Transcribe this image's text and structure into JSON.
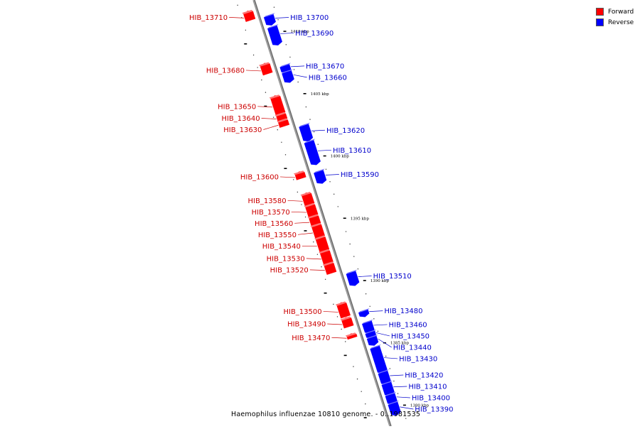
{
  "caption": "Haemophilus influenzae 10810 genome. - 0..1981535",
  "legend": [
    {
      "label": "Forward",
      "color": "#ff0000"
    },
    {
      "label": "Reverse",
      "color": "#0000ff"
    }
  ],
  "colors": {
    "forward": "#ff0000",
    "forward_label": "#cc0000",
    "reverse": "#0000ff",
    "reverse_label": "#0000cc",
    "axis": "#888888"
  },
  "ticks": [
    {
      "label": "1410 kbp",
      "kbp": 1410
    },
    {
      "label": "1405 kbp",
      "kbp": 1405
    },
    {
      "label": "1400 kbp",
      "kbp": 1400
    },
    {
      "label": "1395 kbp",
      "kbp": 1395
    },
    {
      "label": "1390 kbp",
      "kbp": 1390
    },
    {
      "label": "1385 kbp",
      "kbp": 1385
    },
    {
      "label": "1380 kbp",
      "kbp": 1380
    }
  ],
  "forward_genes": [
    {
      "name": "HIB_13710",
      "start": 1412.2,
      "end": 1411.6
    },
    {
      "name": "HIB_13680",
      "start": 1408.0,
      "end": 1407.3
    },
    {
      "name": "HIB_13650",
      "start": 1405.4,
      "end": 1404.1
    },
    {
      "name": "HIB_13640",
      "start": 1404.0,
      "end": 1403.6
    },
    {
      "name": "HIB_13630",
      "start": 1403.5,
      "end": 1403.1
    },
    {
      "name": "HIB_13600",
      "start": 1399.3,
      "end": 1398.9
    },
    {
      "name": "HIB_13580",
      "start": 1397.6,
      "end": 1396.8
    },
    {
      "name": "HIB_13570",
      "start": 1396.7,
      "end": 1395.9
    },
    {
      "name": "HIB_13560",
      "start": 1395.8,
      "end": 1395.2
    },
    {
      "name": "HIB_13550",
      "start": 1395.1,
      "end": 1394.2
    },
    {
      "name": "HIB_13540",
      "start": 1394.1,
      "end": 1393.1
    },
    {
      "name": "HIB_13530",
      "start": 1393.0,
      "end": 1392.1
    },
    {
      "name": "HIB_13520",
      "start": 1392.0,
      "end": 1391.3
    },
    {
      "name": "HIB_13500",
      "start": 1388.8,
      "end": 1387.8
    },
    {
      "name": "HIB_13490",
      "start": 1387.6,
      "end": 1387.0
    },
    {
      "name": "HIB_13470",
      "start": 1386.3,
      "end": 1386.1
    }
  ],
  "reverse_genes": [
    {
      "name": "HIB_13700",
      "start": 1411.5,
      "end": 1410.9
    },
    {
      "name": "HIB_13690",
      "start": 1410.6,
      "end": 1409.3
    },
    {
      "name": "HIB_13670",
      "start": 1407.5,
      "end": 1407.1
    },
    {
      "name": "HIB_13660",
      "start": 1407.0,
      "end": 1406.3
    },
    {
      "name": "HIB_13620",
      "start": 1402.7,
      "end": 1401.6
    },
    {
      "name": "HIB_13610",
      "start": 1401.4,
      "end": 1399.7
    },
    {
      "name": "HIB_13590",
      "start": 1399.0,
      "end": 1398.2
    },
    {
      "name": "HIB_13510",
      "start": 1390.9,
      "end": 1390.0
    },
    {
      "name": "HIB_13480",
      "start": 1387.8,
      "end": 1387.5
    },
    {
      "name": "HIB_13460",
      "start": 1386.9,
      "end": 1386.2
    },
    {
      "name": "HIB_13450",
      "start": 1386.1,
      "end": 1385.8
    },
    {
      "name": "HIB_13440",
      "start": 1385.7,
      "end": 1385.2
    },
    {
      "name": "HIB_13430",
      "start": 1384.9,
      "end": 1383.0
    },
    {
      "name": "HIB_13420",
      "start": 1382.9,
      "end": 1382.1
    },
    {
      "name": "HIB_13410",
      "start": 1382.0,
      "end": 1381.2
    },
    {
      "name": "HIB_13400",
      "start": 1381.1,
      "end": 1380.5
    },
    {
      "name": "HIB_13390",
      "start": 1380.4,
      "end": 1379.6
    }
  ]
}
